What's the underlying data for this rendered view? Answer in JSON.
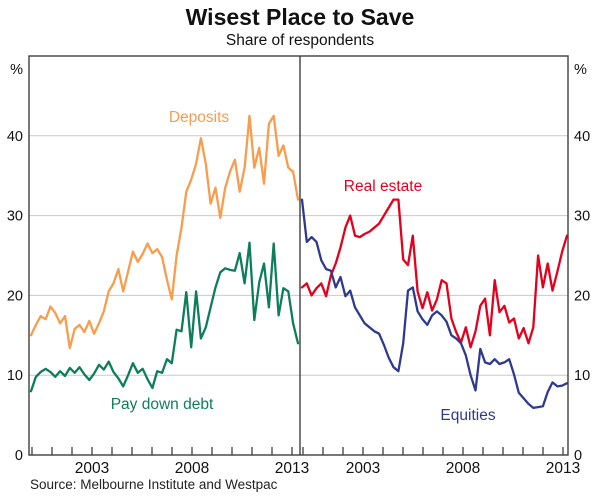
{
  "chart": {
    "title": "Wisest Place to Save",
    "subtitle": "Share of respondents",
    "source": "Source: Melbourne Institute and Westpac",
    "unit_label": "%"
  },
  "chart_data": {
    "type": "line",
    "layout": "two-panel-shared-y-axis",
    "title": "Wisest Place to Save",
    "subtitle": "Share of respondents",
    "ylabel": "%",
    "ylim": [
      0,
      50
    ],
    "y_ticks": [
      0,
      10,
      20,
      30,
      40
    ],
    "grid": "horizontal-gridlines-on",
    "legend_position": "labels-on-lines",
    "x_start_year": 1999.75,
    "x_step_years": 0.25,
    "x_tick_interval_years": 1,
    "x_tick_labels": [
      "2003",
      "2008",
      "2013"
    ],
    "panels": [
      {
        "name": "left",
        "series": [
          {
            "name": "Deposits",
            "color": "#f89c4e",
            "values": [
              15.0,
              16.3,
              17.4,
              17.0,
              18.6,
              17.8,
              16.5,
              17.4,
              13.4,
              15.8,
              16.3,
              15.4,
              16.8,
              15.2,
              16.5,
              18.0,
              20.5,
              21.5,
              23.3,
              20.5,
              23.0,
              25.5,
              24.2,
              25.2,
              26.5,
              25.3,
              25.8,
              24.8,
              22.0,
              19.5,
              25.0,
              28.5,
              33.0,
              34.5,
              36.5,
              39.7,
              36.5,
              31.5,
              33.5,
              29.7,
              33.5,
              35.5,
              37.0,
              33.0,
              36.0,
              42.5,
              36.0,
              38.5,
              34.0,
              41.5,
              42.5,
              37.5,
              38.8,
              36.0,
              35.5,
              32.0
            ]
          },
          {
            "name": "Pay down debt",
            "color": "#0e7d5a",
            "values": [
              8.0,
              9.8,
              10.4,
              10.8,
              10.4,
              9.8,
              10.5,
              9.9,
              10.9,
              10.3,
              11.0,
              10.1,
              9.4,
              10.2,
              11.3,
              10.7,
              11.7,
              10.4,
              9.6,
              8.6,
              10.0,
              11.5,
              10.3,
              10.8,
              9.5,
              8.4,
              10.5,
              10.3,
              12.0,
              11.5,
              15.7,
              15.5,
              20.4,
              13.5,
              20.5,
              14.6,
              16.0,
              18.5,
              21.0,
              22.9,
              23.4,
              23.2,
              23.1,
              25.3,
              21.5,
              26.6,
              16.9,
              21.6,
              24.0,
              18.5,
              26.5,
              17.5,
              20.9,
              20.5,
              16.5,
              14.0
            ]
          }
        ]
      },
      {
        "name": "right",
        "series": [
          {
            "name": "Real estate",
            "color": "#e4001c",
            "values": [
              21.0,
              21.5,
              20.0,
              20.9,
              21.5,
              19.9,
              22.5,
              24.0,
              26.0,
              28.5,
              30.0,
              27.5,
              27.3,
              27.7,
              28.0,
              28.5,
              29.0,
              30.0,
              31.0,
              32.0,
              32.0,
              24.5,
              23.8,
              27.5,
              20.5,
              18.4,
              20.4,
              18.1,
              19.5,
              21.9,
              21.5,
              17.1,
              15.4,
              14.1,
              16.0,
              13.5,
              15.5,
              18.7,
              19.6,
              15.0,
              21.9,
              17.9,
              18.7,
              16.6,
              17.1,
              14.6,
              15.9,
              14.0,
              16.0,
              25.0,
              21.0,
              24.0,
              20.6,
              23.0,
              25.5,
              27.5
            ]
          },
          {
            "name": "Equities",
            "color": "#2f3a8f",
            "values": [
              32.0,
              26.7,
              27.3,
              26.7,
              24.4,
              23.3,
              23.1,
              21.0,
              22.3,
              19.9,
              20.6,
              18.5,
              17.5,
              16.5,
              16.0,
              15.5,
              15.2,
              13.8,
              12.2,
              11.0,
              10.5,
              14.0,
              20.6,
              21.0,
              18.0,
              17.0,
              16.3,
              17.5,
              18.0,
              17.5,
              16.7,
              15.0,
              14.6,
              14.0,
              12.5,
              10.0,
              8.1,
              13.3,
              11.6,
              11.4,
              12.0,
              11.4,
              11.6,
              12.0,
              10.1,
              7.8,
              7.1,
              6.4,
              5.9,
              6.0,
              6.1,
              7.9,
              9.1,
              8.6,
              8.7,
              9.0
            ]
          }
        ]
      }
    ]
  },
  "axis": {
    "percent_left": "%",
    "percent_right": "%"
  }
}
